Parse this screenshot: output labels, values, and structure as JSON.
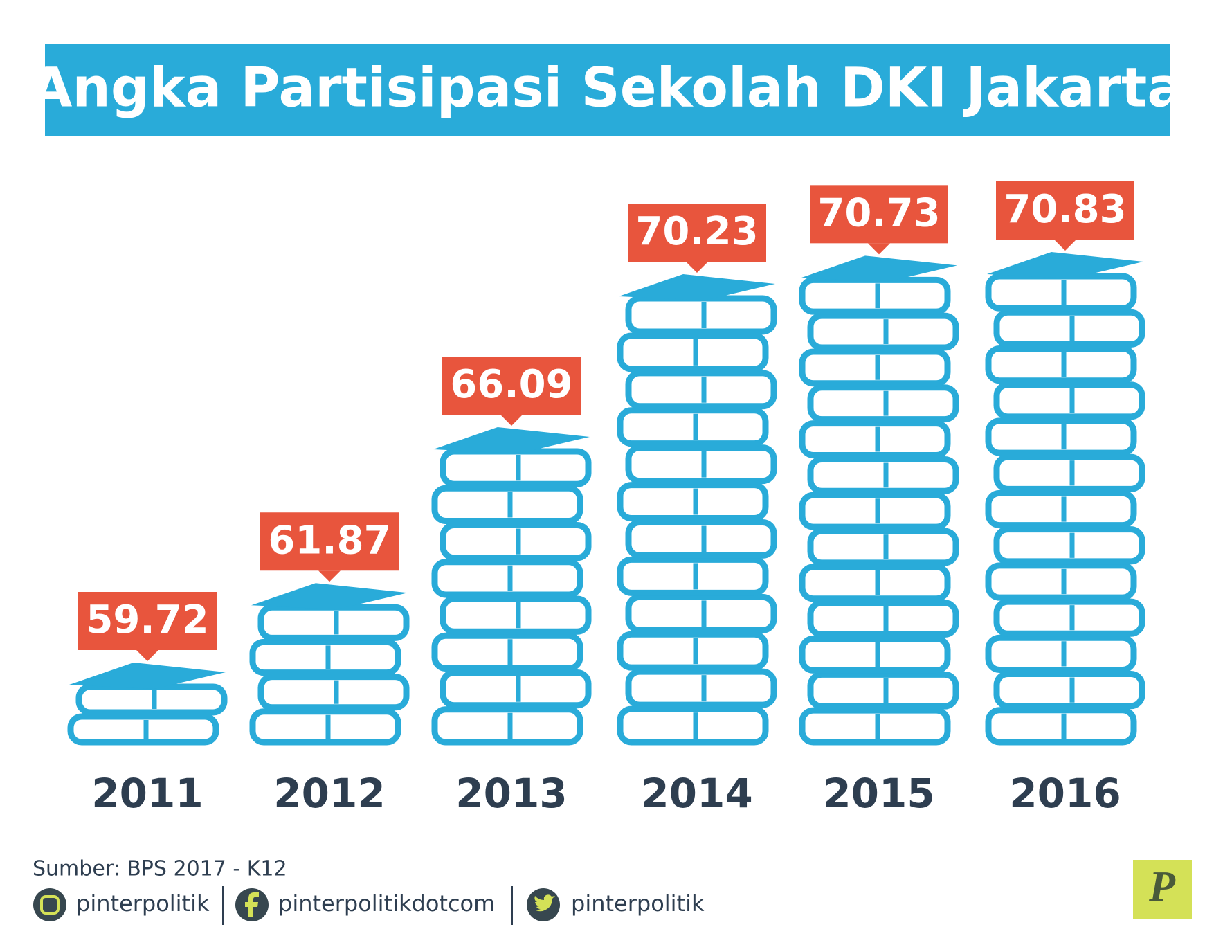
{
  "chart_data": {
    "type": "bar",
    "title": "Angka Partisipasi Sekolah DKI Jakarta",
    "categories": [
      "2011",
      "2012",
      "2013",
      "2014",
      "2015",
      "2016"
    ],
    "values": [
      59.72,
      61.87,
      66.09,
      70.23,
      70.73,
      70.83
    ],
    "color": "#29abd9",
    "label_color": "#e8553d"
  },
  "source": "Sumber: BPS 2017 - K12",
  "social": [
    "pinterpolitik",
    "pinterpolitikdotcom",
    "pinterpolitik"
  ],
  "logo": "P"
}
